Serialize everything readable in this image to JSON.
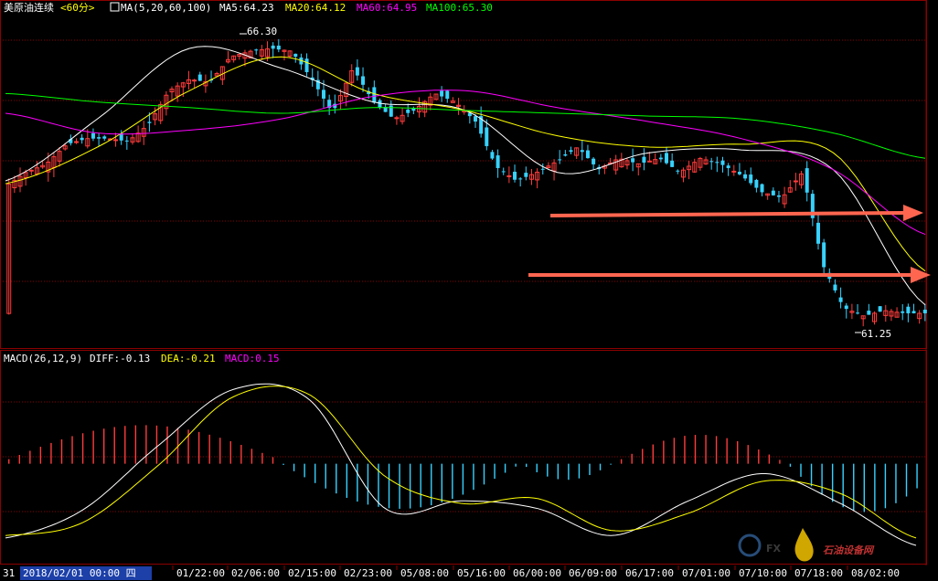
{
  "header": {
    "instrument": "美原油连续",
    "period": "<60分>",
    "ma_label": "MA(5,20,60,100)",
    "ma5": "MA5:64.23",
    "ma20": "MA20:64.12",
    "ma60": "MA60:64.95",
    "ma100": "MA100:65.30"
  },
  "macd_header": {
    "name": "MACD(26,12,9)",
    "diff": "DIFF:-0.13",
    "dea": "DEA:-0.21",
    "macd": "MACD:0.15"
  },
  "annotations": {
    "high": "66.30",
    "low": "61.25"
  },
  "xaxis": {
    "left_label": "31",
    "cursor_label": "2018/02/01 00:00 四",
    "ticks": [
      "01/22:00",
      "02/06:00",
      "02/15:00",
      "02/23:00",
      "05/08:00",
      "05/16:00",
      "06/00:00",
      "06/09:00",
      "06/17:00",
      "07/01:00",
      "07/10:00",
      "07/18:00",
      "08/02:00"
    ]
  },
  "watermark": {
    "text": "石油设备网"
  },
  "colors": {
    "up": "#ff3c3c",
    "down": "#37d2ff",
    "ma5": "#ffffff",
    "ma20": "#ffff00",
    "ma60": "#ff00ff",
    "ma100": "#00ff00",
    "arrow": "#ff6650",
    "grid": "#8b0000"
  },
  "chart_data": {
    "type": "line",
    "series": [
      {
        "name": "MA5",
        "x": [
          0,
          0.1,
          0.2,
          0.3,
          0.4,
          0.5,
          0.6,
          0.7,
          0.8,
          0.9,
          1.0
        ],
        "y": [
          63.8,
          64.9,
          66.15,
          65.8,
          65.2,
          65.05,
          63.95,
          64.3,
          64.35,
          64.0,
          61.6
        ]
      },
      {
        "name": "MA20",
        "x": [
          0,
          0.1,
          0.2,
          0.3,
          0.4,
          0.5,
          0.6,
          0.7,
          0.8,
          0.9,
          1.0
        ],
        "y": [
          63.75,
          64.4,
          65.4,
          66.0,
          65.35,
          65.05,
          64.6,
          64.4,
          64.45,
          64.3,
          62.2
        ]
      },
      {
        "name": "MA60",
        "x": [
          0,
          0.1,
          0.2,
          0.3,
          0.4,
          0.5,
          0.6,
          0.7,
          0.8,
          0.9,
          1.0
        ],
        "y": [
          65.0,
          64.65,
          64.7,
          64.9,
          65.3,
          65.4,
          65.1,
          64.85,
          64.55,
          64.0,
          62.85
        ]
      },
      {
        "name": "MA100",
        "x": [
          0,
          0.1,
          0.2,
          0.3,
          0.4,
          0.5,
          0.6,
          0.7,
          0.8,
          0.9,
          1.0
        ],
        "y": [
          65.35,
          65.2,
          65.1,
          65.0,
          65.1,
          65.05,
          65.0,
          64.95,
          64.9,
          64.65,
          64.2
        ]
      }
    ],
    "price_high": 66.3,
    "price_low": 61.25,
    "candles_count": 164,
    "macd": {
      "diff_path": [
        -1.5,
        -0.95,
        0.35,
        1.5,
        1.3,
        -0.9,
        -0.75,
        -0.9,
        -1.45,
        -0.75,
        -0.2,
        -0.8,
        -1.65
      ],
      "dea_path": [
        -1.45,
        -1.2,
        -0.05,
        1.35,
        1.4,
        -0.25,
        -0.8,
        -0.7,
        -1.35,
        -1.0,
        -0.35,
        -0.6,
        -1.5
      ],
      "bars_hint": "positive red bars at start and around 06/17–07/10; negative cyan bars 02/15–06/09 and after 07/18"
    }
  }
}
